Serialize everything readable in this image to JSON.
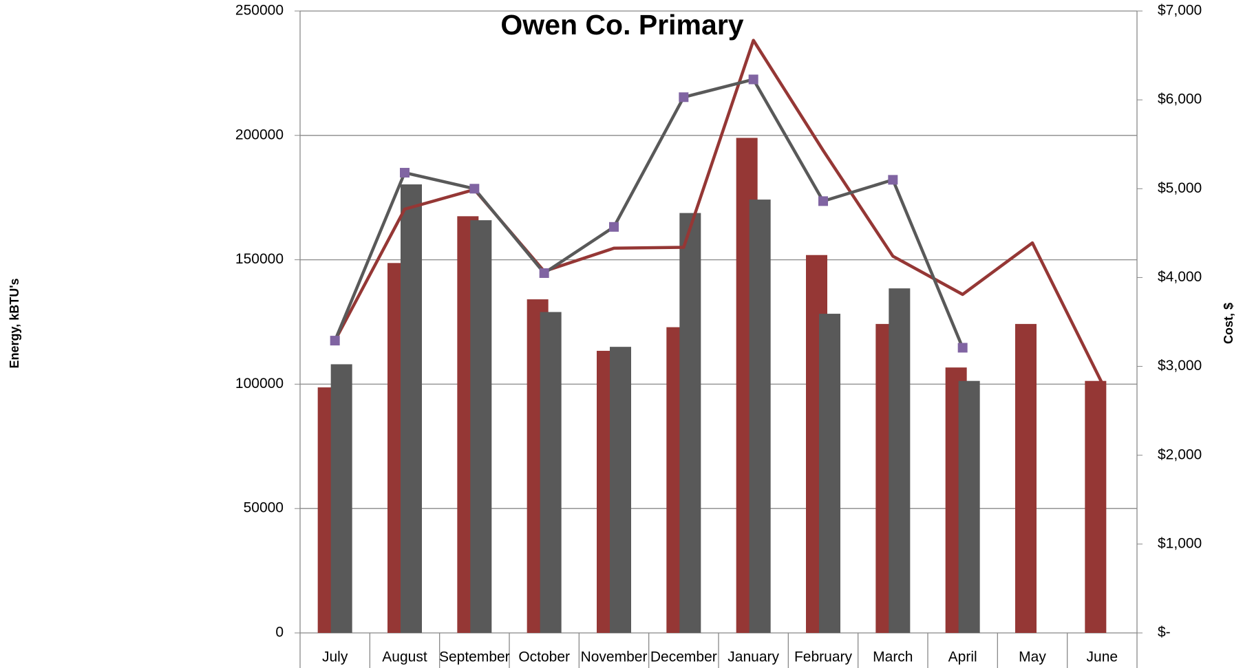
{
  "chart_data": {
    "type": "bar-line",
    "title": "Owen Co. Primary",
    "y_label": "Energy, kBTU's",
    "y2_label": "Cost, $",
    "categories": [
      "July",
      "August",
      "September",
      "October",
      "November",
      "December",
      "January",
      "February",
      "March",
      "April",
      "May",
      "June"
    ],
    "ylim": [
      0,
      250000
    ],
    "yticks": [
      0,
      50000,
      100000,
      150000,
      200000,
      250000
    ],
    "y2lim": [
      0,
      7000
    ],
    "y2ticks": [
      {
        "value": 0,
        "label": "$-"
      },
      {
        "value": 1000,
        "label": "$1,000"
      },
      {
        "value": 2000,
        "label": "$2,000"
      },
      {
        "value": 3000,
        "label": "$3,000"
      },
      {
        "value": 4000,
        "label": "$4,000"
      },
      {
        "value": 5000,
        "label": "$5,000"
      },
      {
        "value": 6000,
        "label": "$6,000"
      },
      {
        "value": 7000,
        "label": "$7,000"
      }
    ],
    "grid": true,
    "series": [
      {
        "type": "bar",
        "color": "#953735",
        "values": [
          98700,
          148700,
          167500,
          134100,
          113400,
          122900,
          199000,
          151900,
          124200,
          106700,
          124200,
          101300
        ]
      },
      {
        "type": "bar",
        "color": "#595959",
        "values": [
          108000,
          180300,
          165900,
          129000,
          115000,
          168800,
          174200,
          128300,
          138500,
          101300,
          null,
          null
        ]
      },
      {
        "type": "line",
        "axis": "y2",
        "color": "#953735",
        "values": [
          3290,
          4770,
          4990,
          4070,
          4330,
          4340,
          6670,
          5430,
          4240,
          3810,
          4390,
          2810
        ]
      },
      {
        "type": "line",
        "axis": "y2",
        "color": "#595959",
        "marker_color": "#8064a2",
        "values": [
          3290,
          5180,
          5000,
          4050,
          4570,
          6030,
          6230,
          4860,
          5100,
          3210,
          null,
          null
        ]
      }
    ]
  }
}
